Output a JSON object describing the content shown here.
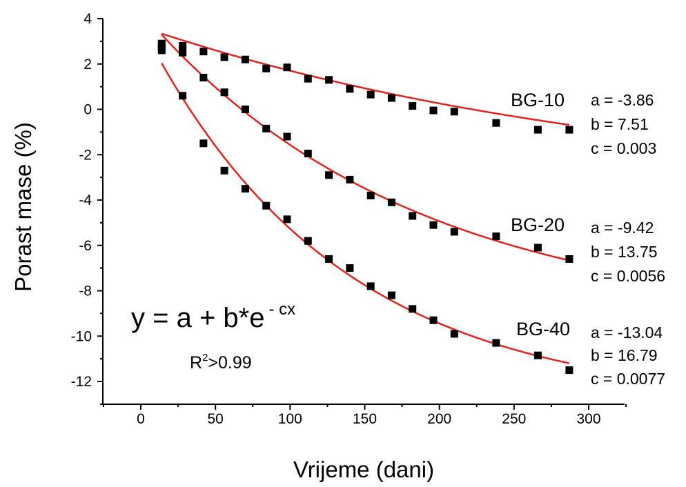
{
  "chart_data": {
    "type": "scatter",
    "xlabel": "Vrijeme (dani)",
    "ylabel": "Porast mase (%)",
    "xlim": [
      -40,
      325
    ],
    "ylim": [
      -13,
      4
    ],
    "x_ticks": [
      "0",
      "50",
      "100",
      "150",
      "200",
      "250",
      "300"
    ],
    "y_ticks": [
      "4",
      "2",
      "0",
      "-2",
      "-4",
      "-6",
      "-8",
      "-10",
      "-12"
    ],
    "marker_color": "#000000",
    "fit_color": "#e8201c",
    "equation": {
      "base": "y = a + b*e",
      "exponent": "- cx"
    },
    "r2": {
      "prefix": "R",
      "sup": "2",
      "suffix": ">0.99"
    },
    "series": [
      {
        "name": "BG-10",
        "params": [
          "a = -3.86",
          "b = 7.51",
          "c = 0.003"
        ],
        "fit": {
          "a": -3.86,
          "b": 7.51,
          "c": 0.003
        },
        "x": [
          14,
          14,
          28,
          28,
          42,
          56,
          70,
          84,
          98,
          112,
          126,
          140,
          154,
          168,
          182,
          196,
          210,
          238,
          266,
          287
        ],
        "y": [
          2.9,
          2.6,
          2.8,
          2.5,
          2.55,
          2.3,
          2.2,
          1.8,
          1.85,
          1.35,
          1.3,
          0.9,
          0.65,
          0.5,
          0.15,
          -0.05,
          -0.1,
          -0.6,
          -0.9,
          -0.9
        ]
      },
      {
        "name": "BG-20",
        "params": [
          "a = -9.42",
          "b = 13.75",
          "c = 0.0056"
        ],
        "fit": {
          "a": -9.42,
          "b": 13.75,
          "c": 0.0056
        },
        "x": [
          14,
          28,
          42,
          56,
          70,
          84,
          98,
          112,
          126,
          140,
          154,
          168,
          182,
          196,
          210,
          238,
          266,
          287
        ],
        "y": [
          2.7,
          2.6,
          1.4,
          0.75,
          0.0,
          -0.85,
          -1.2,
          -1.95,
          -2.9,
          -3.1,
          -3.8,
          -4.1,
          -4.7,
          -5.1,
          -5.4,
          -5.6,
          -6.1,
          -6.6
        ]
      },
      {
        "name": "BG-40",
        "params": [
          "a = -13.04",
          "b = 16.79",
          "c = 0.0077"
        ],
        "fit": {
          "a": -13.04,
          "b": 16.79,
          "c": 0.0077
        },
        "x": [
          14,
          28,
          42,
          56,
          70,
          84,
          98,
          112,
          126,
          140,
          154,
          168,
          182,
          196,
          210,
          238,
          266,
          287
        ],
        "y": [
          2.8,
          0.6,
          -1.5,
          -2.7,
          -3.5,
          -4.25,
          -4.85,
          -5.8,
          -6.6,
          -7.0,
          -7.8,
          -8.2,
          -8.8,
          -9.3,
          -9.9,
          -10.3,
          -10.85,
          -11.5
        ]
      }
    ]
  }
}
